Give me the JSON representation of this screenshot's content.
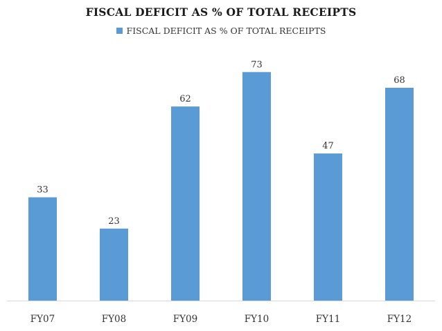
{
  "chart_data": {
    "type": "bar",
    "title": "FISCAL DEFICIT AS % OF TOTAL RECEIPTS",
    "xlabel": "",
    "ylabel": "",
    "categories": [
      "FY07",
      "FY08",
      "FY09",
      "FY10",
      "FY11",
      "FY12"
    ],
    "category_labels": [
      "FY07",
      "FY08",
      "FY09",
      "FY10",
      "FY11",
      "FY12"
    ],
    "series": [
      {
        "name": "FISCAL DEFICIT AS % OF TOTAL RECEIPTS",
        "values": [
          33,
          23,
          62,
          73,
          47,
          68
        ],
        "color": "#5b9bd5"
      }
    ],
    "data_labels": [
      "33",
      "23",
      "62",
      "73",
      "47",
      "68"
    ],
    "ylim": [
      0,
      80
    ],
    "grid": false,
    "legend_position": "top",
    "axis_color": "#d9d9d9",
    "label_color": "#333333"
  }
}
